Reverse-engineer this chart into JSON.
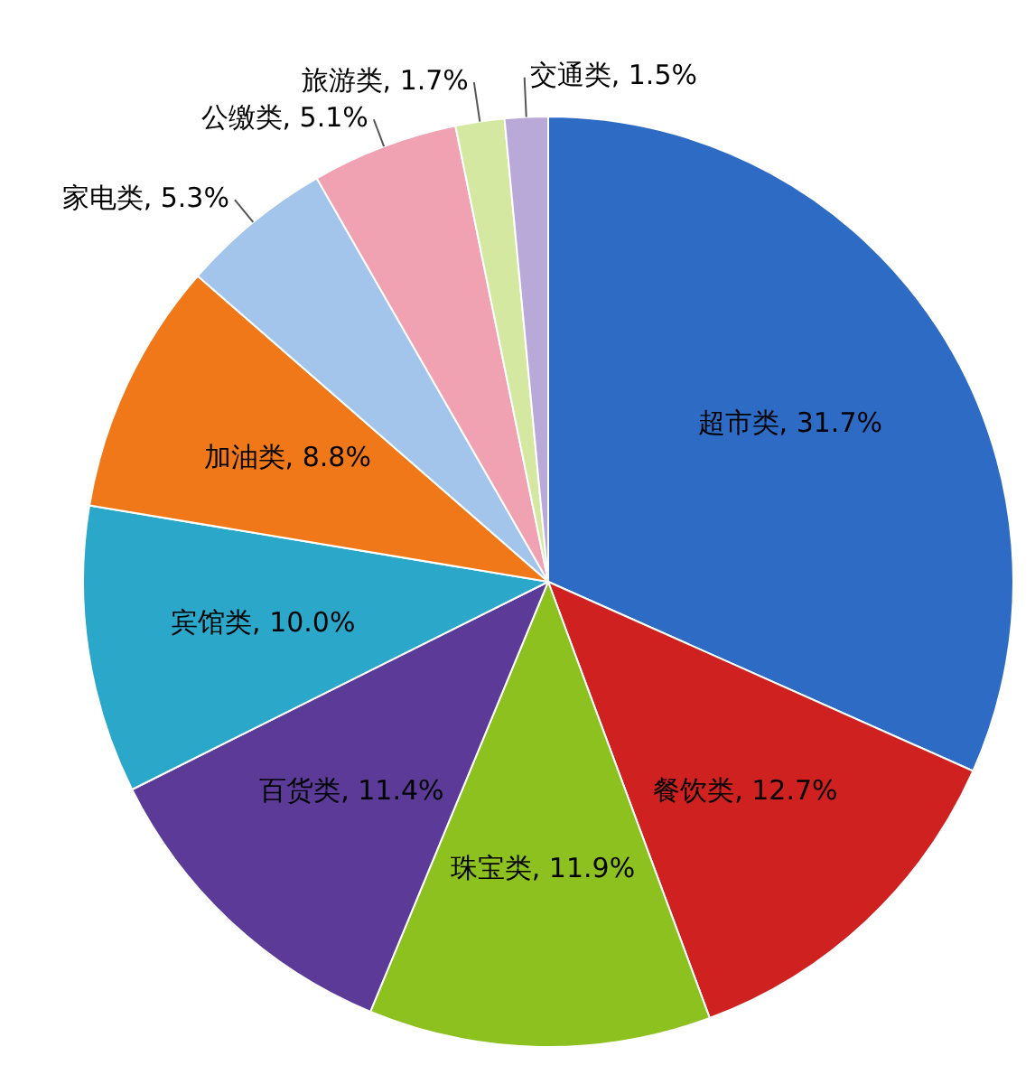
{
  "chart_data": {
    "type": "pie",
    "categories": [
      "超市类",
      "餐饮类",
      "珠宝类",
      "百货类",
      "宾馆类",
      "加油类",
      "家电类",
      "公缴类",
      "旅游类",
      "交通类"
    ],
    "values": [
      31.7,
      12.7,
      11.9,
      11.4,
      10.0,
      8.8,
      5.3,
      5.1,
      1.7,
      1.5
    ],
    "colors": [
      "#2e6bc4",
      "#d02121",
      "#8cc11f",
      "#5b3a98",
      "#2aa7c9",
      "#f07818",
      "#a3c5ec",
      "#f0a2b2",
      "#d5e8a2",
      "#b9a9d9"
    ],
    "value_labels": [
      ", 31.7%",
      ", 12.7%",
      ", 11.9%",
      ", 11.4%",
      ", 10.0%",
      ", 8.8%",
      ", 5.3%",
      ", 5.1%",
      ", 1.7%",
      ", 1.5%"
    ],
    "legend": false
  }
}
